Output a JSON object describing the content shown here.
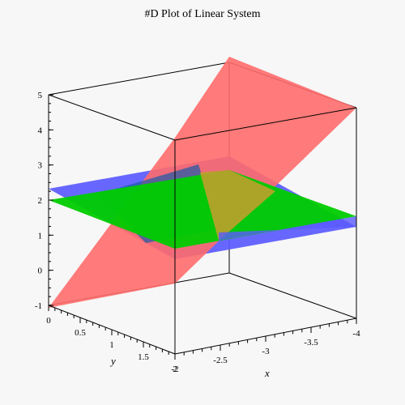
{
  "chart_data": {
    "type": "surface3d",
    "title": "#D Plot of Linear System",
    "xlabel": "x",
    "ylabel": "y",
    "zlabel": "",
    "xlim": [
      -4,
      -2
    ],
    "ylim": [
      0,
      2
    ],
    "zlim": [
      -1,
      5
    ],
    "x_ticks": [
      "-2",
      "-2.5",
      "-3",
      "-3.5",
      "-4"
    ],
    "y_ticks": [
      "0",
      "0.5",
      "1",
      "1.5",
      "2"
    ],
    "z_ticks": [
      "-1",
      "0",
      "1",
      "2",
      "3",
      "4",
      "5"
    ],
    "series": [
      {
        "color": "#ff6b6b",
        "surface": "tilted plane rising from z=-1 to z=5"
      },
      {
        "color": "#5a5aff",
        "surface": "near-horizontal plane around z=2"
      },
      {
        "color": "#00cc00",
        "surface": "near-horizontal plane around z=1.5-2"
      }
    ]
  }
}
